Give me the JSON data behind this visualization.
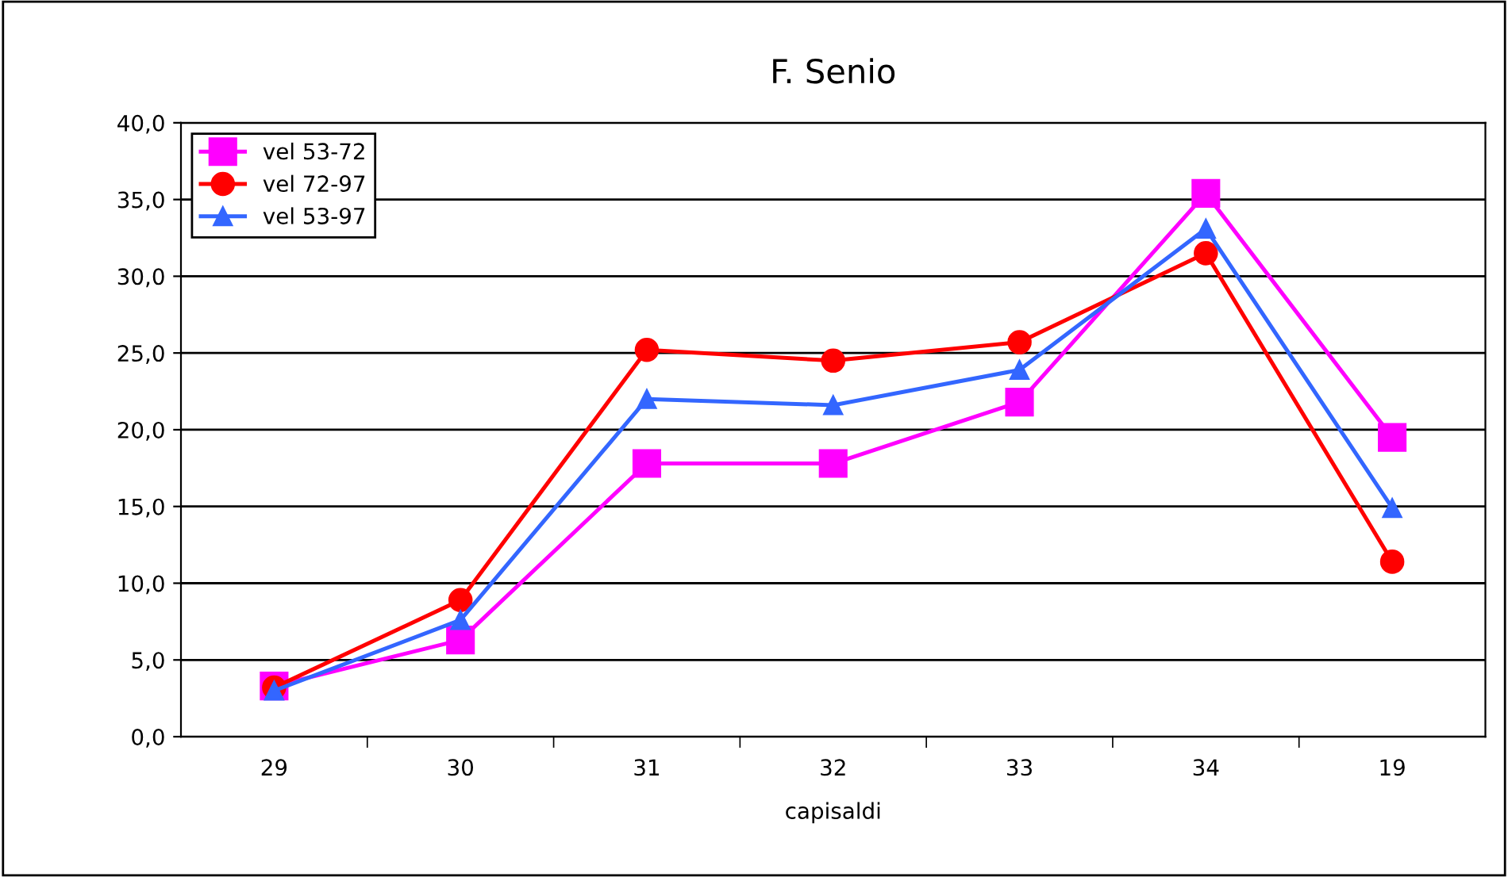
{
  "chart_data": {
    "type": "line",
    "title": "F. Senio",
    "xlabel": "capisaldi",
    "categories": [
      "29",
      "30",
      "31",
      "32",
      "33",
      "34",
      "19"
    ],
    "series": [
      {
        "name": "vel 53-72",
        "color": "#ff00ff",
        "marker": "square",
        "values": [
          3.3,
          6.3,
          17.8,
          17.8,
          21.8,
          35.4,
          19.5
        ]
      },
      {
        "name": "vel 72-97",
        "color": "#ff0000",
        "marker": "circle",
        "values": [
          3.2,
          8.9,
          25.2,
          24.5,
          25.7,
          31.5,
          11.4
        ]
      },
      {
        "name": "vel 53-97",
        "color": "#3366ff",
        "marker": "triangle",
        "values": [
          3.0,
          7.6,
          22.0,
          21.6,
          23.9,
          33.1,
          14.9
        ]
      }
    ],
    "ylim": [
      0,
      40
    ],
    "yticks": [
      {
        "value": 0,
        "label": "0,0"
      },
      {
        "value": 5,
        "label": "5,0"
      },
      {
        "value": 10,
        "label": "10,0"
      },
      {
        "value": 15,
        "label": "15,0"
      },
      {
        "value": 20,
        "label": "20,0"
      },
      {
        "value": 25,
        "label": "25,0"
      },
      {
        "value": 30,
        "label": "30,0"
      },
      {
        "value": 35,
        "label": "35,0"
      },
      {
        "value": 40,
        "label": "40,0"
      }
    ],
    "grid": "y",
    "legend": "top left",
    "line_style": "solid"
  }
}
